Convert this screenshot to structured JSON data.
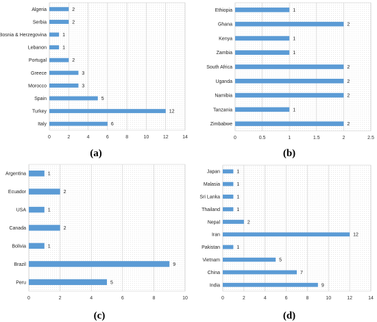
{
  "bar_color": "#5b9bd5",
  "grid_color": "#cccccc",
  "chart_data": [
    {
      "type": "bar",
      "orientation": "horizontal",
      "caption": "(a)",
      "categories": [
        "Algeria",
        "Serbia",
        "Bosnia & Herzegovina",
        "Lebanon",
        "Portugal",
        "Greece",
        "Morocco",
        "Spain",
        "Turkey",
        "Italy"
      ],
      "values": [
        2,
        2,
        1,
        1,
        2,
        3,
        3,
        5,
        12,
        6
      ],
      "xlim": [
        0,
        14
      ],
      "xticks": [
        0,
        2,
        4,
        6,
        8,
        10,
        12,
        14
      ],
      "grid": true
    },
    {
      "type": "bar",
      "orientation": "horizontal",
      "caption": "(b)",
      "categories": [
        "Ethiopia",
        "Ghana",
        "Kenya",
        "Zambia",
        "South Africa",
        "Uganda",
        "Namibia",
        "Tanzania",
        "Zimbabwe"
      ],
      "values": [
        1,
        2,
        1,
        1,
        2,
        2,
        2,
        1,
        2
      ],
      "xlim": [
        0,
        2.5
      ],
      "xticks": [
        0,
        0.5,
        1,
        1.5,
        2,
        2.5
      ],
      "grid": true
    },
    {
      "type": "bar",
      "orientation": "horizontal",
      "caption": "(c)",
      "categories": [
        "Argentina",
        "Ecuador",
        "USA",
        "Canada",
        "Bolivia",
        "Brazil",
        "Peru"
      ],
      "values": [
        1,
        2,
        1,
        2,
        1,
        9,
        5
      ],
      "xlim": [
        0,
        10
      ],
      "xticks": [
        0,
        2,
        4,
        6,
        8,
        10
      ],
      "grid": true
    },
    {
      "type": "bar",
      "orientation": "horizontal",
      "caption": "(d)",
      "categories": [
        "Japan",
        "Malasia",
        "Sri Lanka",
        "Thailand",
        "Nepal",
        "Iran",
        "Pakistan",
        "Vietnam",
        "China",
        "India"
      ],
      "values": [
        1,
        1,
        1,
        1,
        2,
        12,
        1,
        5,
        7,
        9
      ],
      "xlim": [
        0,
        14
      ],
      "xticks": [
        0,
        2,
        4,
        6,
        8,
        10,
        12,
        14
      ],
      "grid": true
    }
  ]
}
